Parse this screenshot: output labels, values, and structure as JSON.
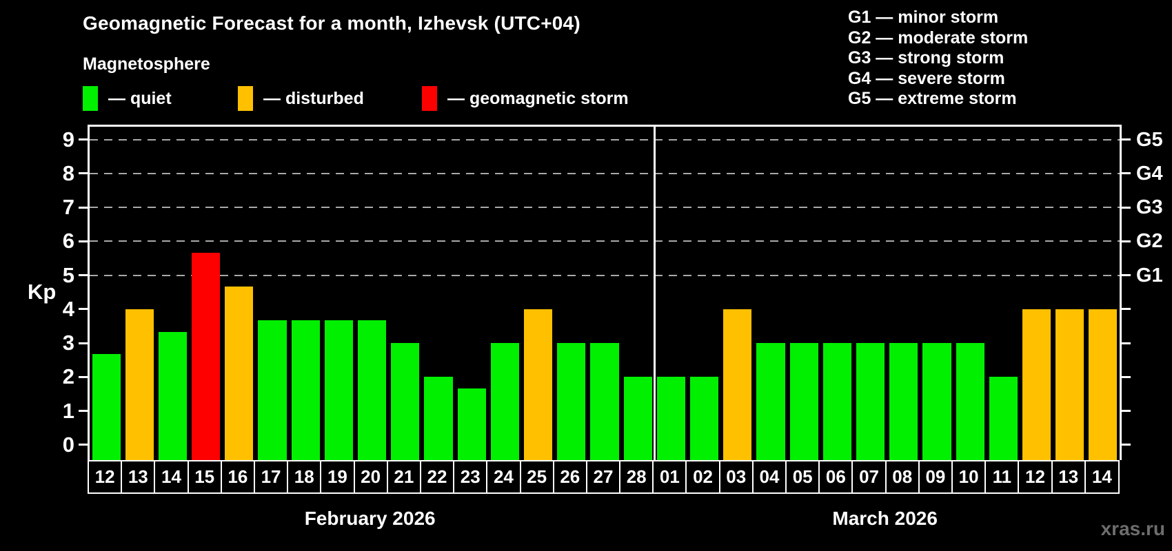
{
  "title": "Geomagnetic Forecast for a month, Izhevsk (UTC+04)",
  "subtitle": "Magnetosphere",
  "legend": {
    "items": [
      {
        "status": "quiet",
        "label": "— quiet"
      },
      {
        "status": "disturbed",
        "label": "— disturbed"
      },
      {
        "status": "storm",
        "label": "— geomagnetic storm"
      }
    ]
  },
  "g_legend": [
    "G1 — minor storm",
    "G2 — moderate storm",
    "G3 — strong storm",
    "G4 — severe storm",
    "G5 — extreme storm"
  ],
  "axis": {
    "kp_label": "Kp",
    "y_ticks": [
      0,
      1,
      2,
      3,
      4,
      5,
      6,
      7,
      8,
      9
    ],
    "g_axis": [
      {
        "kp": 5,
        "label": "G1"
      },
      {
        "kp": 6,
        "label": "G2"
      },
      {
        "kp": 7,
        "label": "G3"
      },
      {
        "kp": 8,
        "label": "G4"
      },
      {
        "kp": 9,
        "label": "G5"
      }
    ]
  },
  "watermark": "xras.ru",
  "chart_data": {
    "type": "bar",
    "title": "Geomagnetic Forecast for a month, Izhevsk (UTC+04)",
    "ylabel": "Kp",
    "ylim": [
      0,
      9
    ],
    "grid": "dashed horizontal at Kp 5-9 only",
    "gridlines_at": [
      5,
      6,
      7,
      8,
      9
    ],
    "status_colors": {
      "quiet": "#00f000",
      "disturbed": "#ffc000",
      "storm": "#ff0000"
    },
    "months": [
      {
        "label": "February 2026",
        "days": [
          "12",
          "13",
          "14",
          "15",
          "16",
          "17",
          "18",
          "19",
          "20",
          "21",
          "22",
          "23",
          "24",
          "25",
          "26",
          "27",
          "28"
        ],
        "values": [
          2.67,
          4.0,
          3.33,
          5.67,
          4.67,
          3.67,
          3.67,
          3.67,
          3.67,
          3.0,
          2.0,
          1.67,
          3.0,
          4.0,
          3.0,
          3.0,
          2.0
        ],
        "status": [
          "quiet",
          "disturbed",
          "quiet",
          "storm",
          "disturbed",
          "quiet",
          "quiet",
          "quiet",
          "quiet",
          "quiet",
          "quiet",
          "quiet",
          "quiet",
          "disturbed",
          "quiet",
          "quiet",
          "quiet"
        ]
      },
      {
        "label": "March 2026",
        "days": [
          "01",
          "02",
          "03",
          "04",
          "05",
          "06",
          "07",
          "08",
          "09",
          "10",
          "11",
          "12",
          "13",
          "14"
        ],
        "values": [
          2.0,
          2.0,
          4.0,
          3.0,
          3.0,
          3.0,
          3.0,
          3.0,
          3.0,
          3.0,
          2.0,
          4.0,
          4.0,
          4.0
        ],
        "status": [
          "quiet",
          "quiet",
          "disturbed",
          "quiet",
          "quiet",
          "quiet",
          "quiet",
          "quiet",
          "quiet",
          "quiet",
          "quiet",
          "disturbed",
          "disturbed",
          "disturbed"
        ]
      }
    ]
  }
}
